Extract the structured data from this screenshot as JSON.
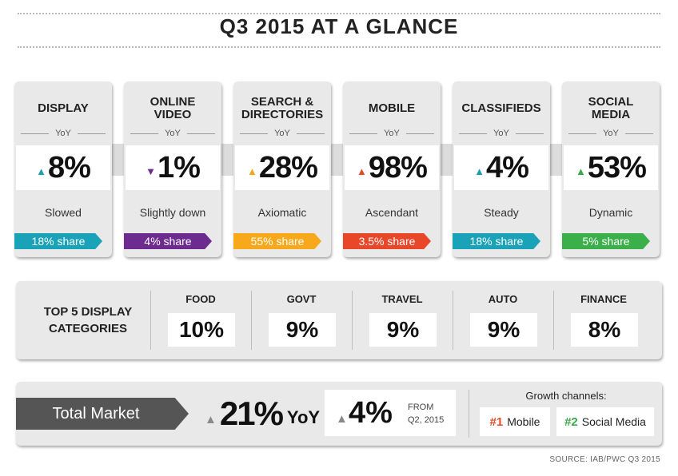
{
  "title": "Q3 2015 AT A GLANCE",
  "yoy_label": "YoY",
  "channels": [
    {
      "name_line1": "DISPLAY",
      "name_line2": "",
      "value": "8%",
      "arrow": "▲",
      "arrow_color": "#1a9fb0",
      "description": "Slowed",
      "share": "18% share",
      "share_color": "#1aa3b8"
    },
    {
      "name_line1": "ONLINE",
      "name_line2": "VIDEO",
      "value": "1%",
      "arrow": "▼",
      "arrow_color": "#6b2d8c",
      "description": "Slightly down",
      "share": "4% share",
      "share_color": "#6e2b8f"
    },
    {
      "name_line1": "SEARCH &",
      "name_line2": "DIRECTORIES",
      "value": "28%",
      "arrow": "▲",
      "arrow_color": "#f4a51c",
      "description": "Axiomatic",
      "share": "55% share",
      "share_color": "#f7a81b"
    },
    {
      "name_line1": "MOBILE",
      "name_line2": "",
      "value": "98%",
      "arrow": "▲",
      "arrow_color": "#e24b26",
      "description": "Ascendant",
      "share": "3.5% share",
      "share_color": "#e8472a"
    },
    {
      "name_line1": "CLASSIFIEDS",
      "name_line2": "",
      "value": "4%",
      "arrow": "▲",
      "arrow_color": "#1a9fb0",
      "description": "Steady",
      "share": "18% share",
      "share_color": "#1aa3b8"
    },
    {
      "name_line1": "SOCIAL",
      "name_line2": "MEDIA",
      "value": "53%",
      "arrow": "▲",
      "arrow_color": "#3aa94a",
      "description": "Dynamic",
      "share": "5% share",
      "share_color": "#3bb04a"
    }
  ],
  "top5": {
    "title_line1": "TOP 5 DISPLAY",
    "title_line2": "CATEGORIES",
    "categories": [
      {
        "name": "FOOD",
        "value": "10%"
      },
      {
        "name": "GOVT",
        "value": "9%"
      },
      {
        "name": "TRAVEL",
        "value": "9%"
      },
      {
        "name": "AUTO",
        "value": "9%"
      },
      {
        "name": "FINANCE",
        "value": "8%"
      }
    ]
  },
  "total_market": {
    "label": "Total Market",
    "arrow": "▲",
    "yoy_value": "21%",
    "yoy_unit": "YoY",
    "qoq_value": "4%",
    "qoq_from_line1": "FROM",
    "qoq_from_line2": "Q2, 2015",
    "growth_title": "Growth channels:",
    "growth_channels": [
      {
        "rank": "#1",
        "name": "Mobile"
      },
      {
        "rank": "#2",
        "name": "Social Media"
      }
    ]
  },
  "source": "SOURCE: IAB/PWC Q3 2015"
}
